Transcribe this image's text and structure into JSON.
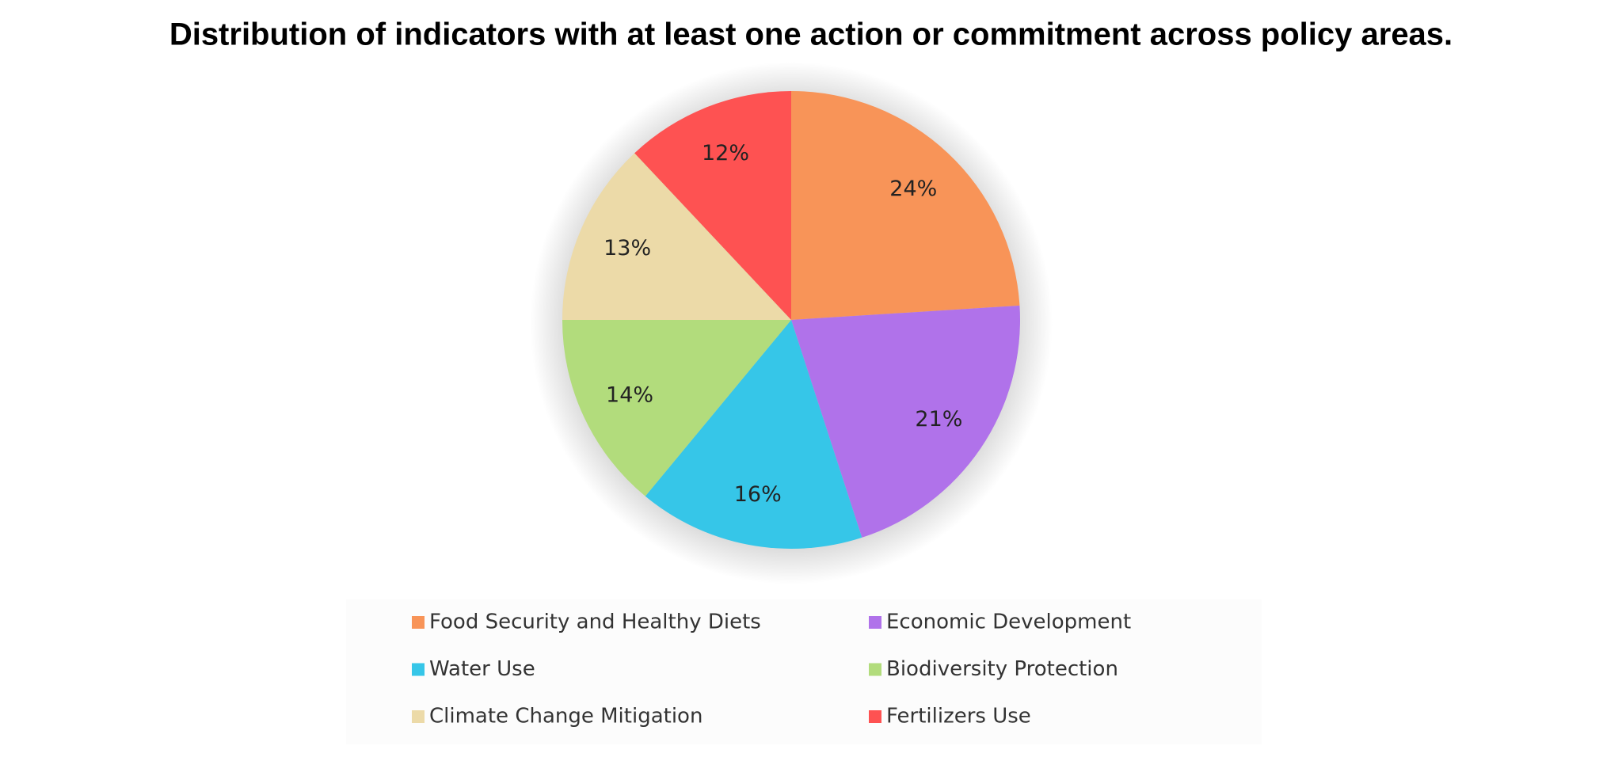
{
  "chart_data": {
    "type": "pie",
    "title": "Distribution of indicators with at least one action or commitment across policy areas.",
    "categories": [
      "Food Security and Healthy Diets",
      "Economic Development",
      "Water Use",
      "Biodiversity Protection",
      "Climate Change Mitigation",
      "Fertilizers Use"
    ],
    "values": [
      24,
      21,
      16,
      14,
      13,
      12
    ],
    "value_labels": [
      "24%",
      "21%",
      "16%",
      "14%",
      "13%",
      "12%"
    ],
    "colors": [
      "#f89458",
      "#b072ea",
      "#36c6e8",
      "#b2dc7c",
      "#ecdaa8",
      "#fe5252"
    ],
    "legend": "bottom"
  }
}
